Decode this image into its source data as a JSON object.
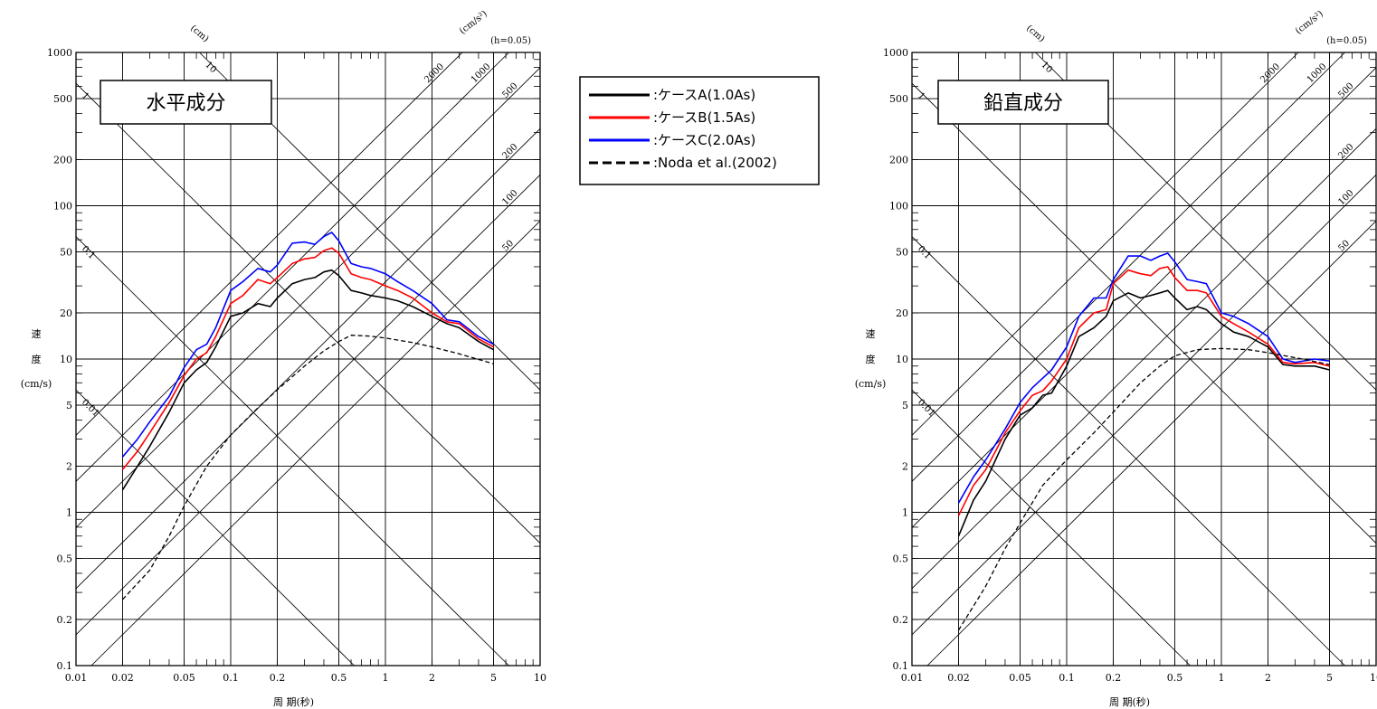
{
  "common": {
    "xlabel": "周 期(秒)",
    "ylabel_chars": [
      "速",
      "度"
    ],
    "ylabel_unit": "(cm/s)",
    "disp_unit": "(cm)",
    "acc_unit": "(cm/s²)",
    "damping": "(h=0.05)",
    "xlim": [
      0.01,
      10
    ],
    "ylim": [
      0.1,
      1000
    ],
    "x_ticks": [
      0.01,
      0.02,
      0.05,
      0.1,
      0.2,
      0.5,
      1,
      2,
      5,
      10
    ],
    "x_tick_labels": [
      "0.01",
      "0.02",
      "0.05",
      "0.1",
      "0.2",
      "0.5",
      "1",
      "2",
      "5",
      "10"
    ],
    "y_ticks": [
      0.1,
      0.2,
      0.5,
      1,
      2,
      5,
      10,
      20,
      50,
      100,
      200,
      500,
      1000
    ],
    "y_tick_labels": [
      "0.1",
      "0.2",
      "0.5",
      "1",
      "2",
      "5",
      "10",
      "20",
      "50",
      "100",
      "200",
      "500",
      "1000"
    ],
    "disp_lines": [
      0.01,
      0.1,
      1,
      10
    ],
    "disp_labels": [
      "0.01",
      "0.1",
      "1",
      "10"
    ],
    "acc_lines": [
      50,
      100,
      200,
      500,
      1000,
      2000
    ],
    "acc_labels": [
      "50",
      "100",
      "200",
      "500",
      "1000",
      "2000"
    ]
  },
  "legend": [
    {
      "label": ":ケースA(1.0As)",
      "color": "#000000",
      "dash": "solid"
    },
    {
      "label": ":ケースB(1.5As)",
      "color": "#ff0000",
      "dash": "solid"
    },
    {
      "label": ":ケースC(2.0As)",
      "color": "#0000ff",
      "dash": "solid"
    },
    {
      "label": ":Noda et al.(2002)",
      "color": "#000000",
      "dash": "dashed"
    }
  ],
  "chart_data": [
    {
      "type": "line",
      "title": "水平成分",
      "xscale": "log",
      "yscale": "log",
      "series": [
        {
          "name": ":ケースA(1.0As)",
          "color": "#000000",
          "x": [
            0.02,
            0.025,
            0.03,
            0.04,
            0.05,
            0.06,
            0.07,
            0.08,
            0.1,
            0.12,
            0.15,
            0.18,
            0.2,
            0.25,
            0.3,
            0.35,
            0.4,
            0.45,
            0.5,
            0.6,
            0.7,
            0.8,
            1,
            1.2,
            1.5,
            2,
            2.5,
            3,
            4,
            5
          ],
          "y": [
            1.4,
            2.0,
            2.7,
            4.5,
            7.0,
            8.5,
            9.5,
            12,
            19,
            20,
            23,
            22,
            25,
            31,
            33,
            34,
            37,
            38,
            35,
            28,
            27,
            26,
            25,
            24,
            22,
            19,
            17,
            16,
            13,
            11.5
          ]
        },
        {
          "name": ":ケースB(1.5As)",
          "color": "#ff0000",
          "x": [
            0.02,
            0.025,
            0.03,
            0.04,
            0.05,
            0.06,
            0.07,
            0.08,
            0.1,
            0.12,
            0.15,
            0.18,
            0.2,
            0.25,
            0.3,
            0.35,
            0.4,
            0.45,
            0.5,
            0.6,
            0.7,
            0.8,
            1,
            1.2,
            1.5,
            2,
            2.5,
            3,
            4,
            5
          ],
          "y": [
            1.9,
            2.5,
            3.3,
            5.2,
            7.8,
            10,
            11,
            14,
            23,
            26,
            33,
            31,
            34,
            42,
            45,
            46,
            51,
            53,
            49,
            36,
            34,
            33,
            30,
            28,
            25,
            20,
            17.5,
            17,
            13.5,
            12
          ]
        },
        {
          "name": ":ケースC(2.0As)",
          "color": "#0000ff",
          "x": [
            0.02,
            0.025,
            0.03,
            0.04,
            0.05,
            0.06,
            0.07,
            0.08,
            0.1,
            0.12,
            0.15,
            0.18,
            0.2,
            0.25,
            0.3,
            0.35,
            0.4,
            0.45,
            0.5,
            0.6,
            0.7,
            0.8,
            1,
            1.2,
            1.5,
            2,
            2.5,
            3,
            4,
            5
          ],
          "y": [
            2.3,
            3.0,
            3.9,
            5.7,
            8.8,
            11.5,
            12.5,
            16,
            28,
            32,
            39,
            37,
            41,
            57,
            58,
            56,
            63,
            67,
            59,
            42,
            40,
            39,
            36,
            32,
            28,
            23,
            18,
            17.5,
            14,
            12.5
          ]
        },
        {
          "name": ":Noda et al.(2002)",
          "color": "#000000",
          "x": [
            0.02,
            0.03,
            0.04,
            0.05,
            0.07,
            0.1,
            0.15,
            0.2,
            0.3,
            0.4,
            0.5,
            0.6,
            0.8,
            1,
            1.5,
            2,
            3,
            5
          ],
          "y": [
            0.27,
            0.42,
            0.7,
            1.1,
            2.0,
            3.2,
            4.8,
            6.3,
            9.0,
            11.3,
            13.0,
            14.3,
            14.1,
            13.7,
            12.8,
            12.0,
            10.8,
            9.3
          ]
        }
      ]
    },
    {
      "type": "line",
      "title": "鉛直成分",
      "xscale": "log",
      "yscale": "log",
      "series": [
        {
          "name": ":ケースA(1.0As)",
          "color": "#000000",
          "x": [
            0.02,
            0.025,
            0.03,
            0.04,
            0.05,
            0.06,
            0.07,
            0.08,
            0.1,
            0.12,
            0.15,
            0.18,
            0.2,
            0.25,
            0.3,
            0.35,
            0.4,
            0.45,
            0.5,
            0.6,
            0.7,
            0.8,
            1,
            1.2,
            1.5,
            2,
            2.5,
            3,
            4,
            5
          ],
          "y": [
            0.7,
            1.2,
            1.6,
            3.0,
            4.3,
            4.8,
            5.8,
            6.0,
            9,
            14,
            16,
            19,
            24,
            27,
            25,
            26,
            27,
            28,
            25,
            21,
            22,
            21,
            17,
            15,
            14,
            12,
            9.2,
            9,
            9,
            8.5
          ]
        },
        {
          "name": ":ケースB(1.5As)",
          "color": "#ff0000",
          "x": [
            0.02,
            0.025,
            0.03,
            0.04,
            0.05,
            0.06,
            0.07,
            0.08,
            0.1,
            0.12,
            0.15,
            0.18,
            0.2,
            0.25,
            0.3,
            0.35,
            0.4,
            0.45,
            0.5,
            0.6,
            0.7,
            0.8,
            1,
            1.2,
            1.5,
            2,
            2.5,
            3,
            4,
            5
          ],
          "y": [
            0.95,
            1.5,
            1.9,
            3.3,
            4.6,
            5.8,
            6.2,
            7.2,
            10,
            16,
            20,
            21,
            31,
            38,
            36,
            35,
            39,
            40,
            34,
            28,
            28,
            27,
            19,
            17,
            15,
            12.5,
            9.5,
            9.3,
            9.5,
            9
          ]
        },
        {
          "name": ":ケースC(2.0As)",
          "color": "#0000ff",
          "x": [
            0.02,
            0.025,
            0.03,
            0.04,
            0.05,
            0.06,
            0.07,
            0.08,
            0.1,
            0.12,
            0.15,
            0.18,
            0.2,
            0.25,
            0.3,
            0.35,
            0.4,
            0.45,
            0.5,
            0.6,
            0.7,
            0.8,
            1,
            1.2,
            1.5,
            2,
            2.5,
            3,
            4,
            5
          ],
          "y": [
            1.15,
            1.7,
            2.2,
            3.5,
            5.2,
            6.5,
            7.5,
            8.5,
            12,
            19,
            25,
            25,
            33,
            47,
            47,
            44,
            47,
            49,
            43,
            33,
            32,
            31,
            20,
            19,
            17,
            14,
            10,
            9.5,
            10,
            9.7
          ]
        },
        {
          "name": ":Noda et al.(2002)",
          "color": "#000000",
          "x": [
            0.02,
            0.03,
            0.04,
            0.05,
            0.07,
            0.1,
            0.15,
            0.2,
            0.3,
            0.4,
            0.5,
            0.7,
            1,
            1.5,
            2,
            3,
            5
          ],
          "y": [
            0.17,
            0.33,
            0.58,
            0.85,
            1.5,
            2.2,
            3.3,
            4.5,
            7.0,
            9.0,
            10.5,
            11.5,
            11.7,
            11.5,
            11.0,
            10.2,
            9.2
          ]
        }
      ]
    }
  ]
}
